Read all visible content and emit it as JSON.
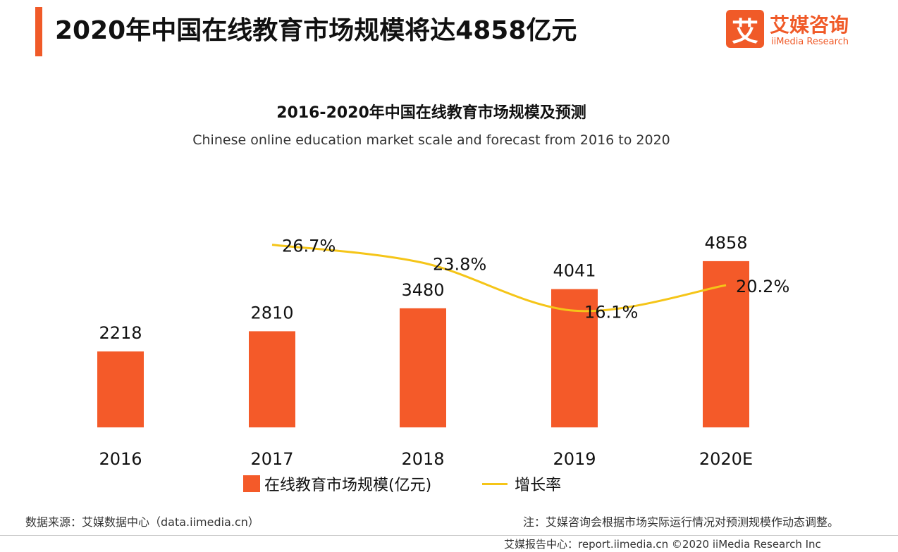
{
  "page_title": "2020年中国在线教育市场规模将达4858亿元",
  "logo": {
    "icon_char": "艾",
    "name_cn": "艾媒咨询",
    "name_en": "iiMedia Research",
    "brand_color": "#f05a28"
  },
  "chart_data": {
    "type": "bar",
    "title": "2016-2020年中国在线教育市场规模及预测",
    "subtitle": "Chinese online education market scale and forecast from 2016 to 2020",
    "categories": [
      "2016",
      "2017",
      "2018",
      "2019",
      "2020E"
    ],
    "series": [
      {
        "name": "在线教育市场规模(亿元)",
        "type": "bar",
        "color": "#f45a29",
        "values": [
          2218,
          2810,
          3480,
          4041,
          4858
        ]
      },
      {
        "name": "增长率",
        "type": "line",
        "color": "#f5c518",
        "values": [
          null,
          26.7,
          23.8,
          16.1,
          20.2
        ],
        "labels": [
          "",
          "26.7%",
          "23.8%",
          "16.1%",
          "20.2%"
        ]
      }
    ],
    "legend_position": "bottom",
    "grid": false
  },
  "notes": {
    "source": "数据来源：艾媒数据中心（data.iimedia.cn）",
    "remark": "注：艾媒咨询会根据市场实际运行情况对预测规模作动态调整。",
    "footer": "艾媒报告中心：report.iimedia.cn    ©2020  iiMedia Research  Inc"
  }
}
